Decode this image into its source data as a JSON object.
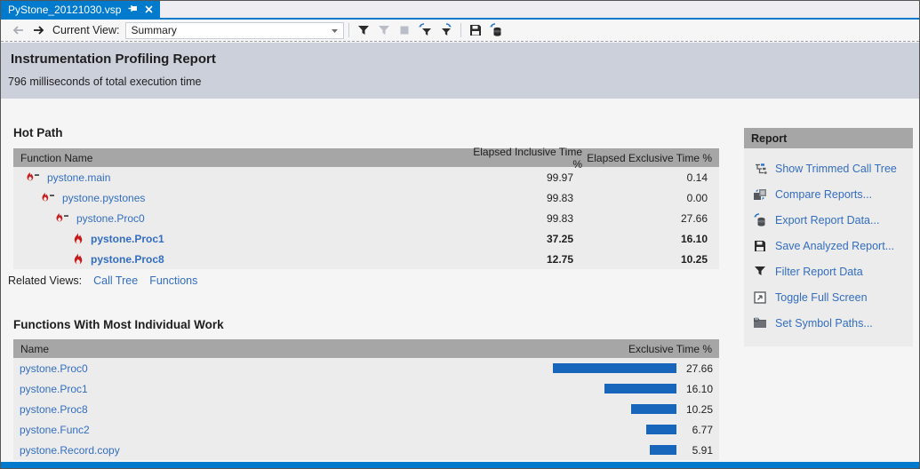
{
  "tab": {
    "title": "PyStone_20121030.vsp"
  },
  "toolbar": {
    "current_view_label": "Current View:",
    "view_value": "Summary"
  },
  "header": {
    "title": "Instrumentation Profiling Report",
    "subtitle": "796 milliseconds of total execution time"
  },
  "hot_path": {
    "title": "Hot Path",
    "columns": [
      "Function Name",
      "Elapsed Inclusive Time %",
      "Elapsed Exclusive Time %"
    ],
    "rows": [
      {
        "name": "pystone.main",
        "inclusive": "99.97",
        "exclusive": "0.14"
      },
      {
        "name": "pystone.pystones",
        "inclusive": "99.83",
        "exclusive": "0.00"
      },
      {
        "name": "pystone.Proc0",
        "inclusive": "99.83",
        "exclusive": "27.66"
      },
      {
        "name": "pystone.Proc1",
        "inclusive": "37.25",
        "exclusive": "16.10"
      },
      {
        "name": "pystone.Proc8",
        "inclusive": "12.75",
        "exclusive": "10.25"
      }
    ],
    "related_views_label": "Related Views:",
    "related_views": [
      "Call Tree",
      "Functions"
    ]
  },
  "individual_work": {
    "title": "Functions With Most Individual Work",
    "columns": [
      "Name",
      "Exclusive Time %"
    ],
    "rows": [
      {
        "name": "pystone.Proc0",
        "value": 27.66,
        "display": "27.66"
      },
      {
        "name": "pystone.Proc1",
        "value": 16.1,
        "display": "16.10"
      },
      {
        "name": "pystone.Proc8",
        "value": 10.25,
        "display": "10.25"
      },
      {
        "name": "pystone.Func2",
        "value": 6.77,
        "display": "6.77"
      },
      {
        "name": "pystone.Record.copy",
        "value": 5.91,
        "display": "5.91"
      }
    ]
  },
  "report_panel": {
    "title": "Report",
    "items": [
      {
        "label": "Show Trimmed Call Tree"
      },
      {
        "label": "Compare Reports..."
      },
      {
        "label": "Export Report Data..."
      },
      {
        "label": "Save Analyzed Report..."
      },
      {
        "label": "Filter Report Data"
      },
      {
        "label": "Toggle Full Screen"
      },
      {
        "label": "Set Symbol Paths..."
      }
    ]
  },
  "colors": {
    "accent": "#007acc",
    "link": "#336dc1",
    "bar": "#1766bb",
    "flame": "#c41e1e",
    "header_band": "#ccd0db",
    "table_header": "#a6a6a6",
    "row_bg": "#ececec"
  }
}
